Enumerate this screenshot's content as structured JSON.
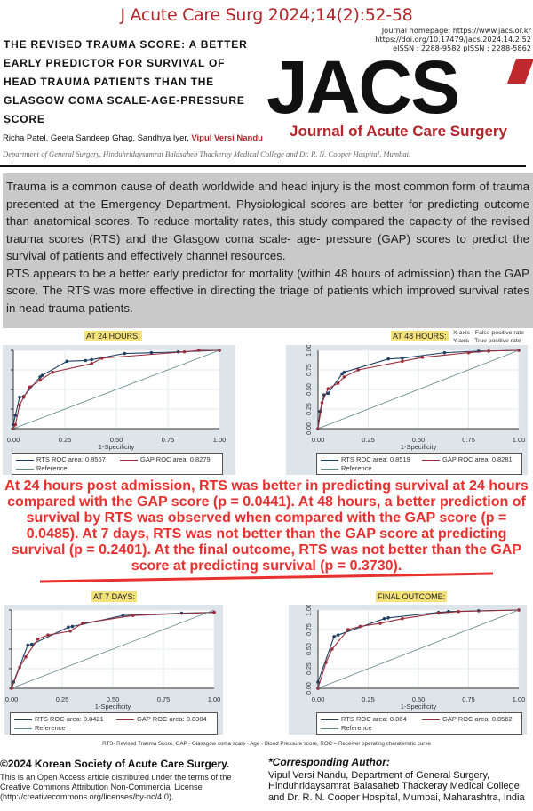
{
  "header": {
    "citation": "J Acute Care Surg 2024;14(2):52-58",
    "meta_lines": [
      "Journal homepage: https://www.jacs.or.kr",
      "https://doi.org/10.17479/jacs.2024.14.2.52",
      "eISSN : 2288-9582 pISSN : 2288-5862"
    ],
    "title": "THE REVISED TRAUMA SCORE: A BETTER EARLY PREDICTOR FOR SURVIVAL OF HEAD TRAUMA PATIENTS THAN THE GLASGOW COMA SCALE-AGE-PRESSURE SCORE",
    "logo": "JACS",
    "journal_name": "Journal of Acute Care Surgery",
    "authors": [
      "Richa Patel",
      "Geeta Sandeep Ghag",
      "Sandhya Iyer",
      "Vipul Versi Nandu"
    ],
    "department": "Department of General Surgery, Hinduhridaysamrat Balasaheb Thackeray Medical College and Dr. R. N. Cooper Hospital, Mumbai.",
    "accent_color": "#b3262b"
  },
  "abstract": {
    "p1": "Trauma is a common cause of death worldwide and head injury is the most common form of trauma presented at the Emergency Department. Physiological scores are better for predicting outcome than anatomical scores. To reduce mortality rates, this study compared the capacity of the revised trauma scores (RTS) and the Glasgow coma scale- age- pressure (GAP) scores to predict the survival of patients and effectively channel resources.",
    "p2": "RTS appears to be a better early predictor for mortality (within 48 hours of admission) than the GAP score. The RTS was more effective in directing the triage of patients which improved survival rates in head trauma patients."
  },
  "axis_note": [
    "X-axis - False positive rate",
    "Y-axis - True positive rate"
  ],
  "stamp_text": "At 24 hours post admission, RTS was better in predicting survival at 24 hours compared with the GAP score (p = 0.0441). At 48 hours, a better prediction of survival by RTS was observed when compared with the GAP score (p = 0.0485). At 7 days, RTS was not better than the GAP score at predicting survival (p = 0.2401). At the final outcome, RTS was not better than the GAP score at predicting survival (p = 0.3730).",
  "chart_data": [
    {
      "type": "line",
      "title": "AT 24 HOURS:",
      "xlabel": "1-Specificity",
      "ylabel": "",
      "xlim": [
        0,
        1
      ],
      "ylim": [
        0,
        1
      ],
      "xticks": [
        "0.00",
        "0.25",
        "0.50",
        "0.75",
        "1.00"
      ],
      "yticks": [],
      "grid": true,
      "legend": "bottom",
      "series": [
        {
          "name": "RTS ROC area: 0.8567",
          "color": "#1f3f63",
          "x": [
            0,
            0,
            0.01,
            0.03,
            0.05,
            0.13,
            0.14,
            0.26,
            0.35,
            0.38,
            0.54,
            0.67,
            0.8,
            1
          ],
          "y": [
            0,
            0.05,
            0.17,
            0.4,
            0.41,
            0.66,
            0.68,
            0.86,
            0.87,
            0.88,
            0.96,
            0.97,
            0.98,
            1
          ]
        },
        {
          "name": "GAP ROC area: 0.8279",
          "color": "#9b2d3a",
          "x": [
            0,
            0.01,
            0.03,
            0.05,
            0.08,
            0.13,
            0.19,
            0.38,
            0.43,
            0.83,
            0.9,
            1
          ],
          "y": [
            0,
            0.05,
            0.3,
            0.4,
            0.53,
            0.62,
            0.72,
            0.83,
            0.9,
            0.98,
            1,
            1
          ]
        },
        {
          "name": "Reference",
          "color": "#5f8a85",
          "x": [
            0,
            1
          ],
          "y": [
            0,
            1
          ]
        }
      ]
    },
    {
      "type": "line",
      "title": "AT 48 HOURS:",
      "xlabel": "1-Specificity",
      "ylabel": "",
      "xlim": [
        0,
        1
      ],
      "ylim": [
        0,
        1
      ],
      "xticks": [
        "0.00",
        "0.25",
        "0.50",
        "0.75",
        "1.00"
      ],
      "yticks": [
        "0.00",
        "0.25",
        "0.50",
        "0.75",
        "1.00"
      ],
      "grid": true,
      "legend": "bottom",
      "series": [
        {
          "name": "RTS ROC area: 0.8519",
          "color": "#1f3f63",
          "x": [
            0,
            0.01,
            0.03,
            0.05,
            0.12,
            0.13,
            0.35,
            0.42,
            0.63,
            0.8,
            1
          ],
          "y": [
            0,
            0.22,
            0.43,
            0.45,
            0.7,
            0.72,
            0.89,
            0.9,
            0.97,
            0.99,
            1
          ]
        },
        {
          "name": "GAP ROC area: 0.8281",
          "color": "#9b2d3a",
          "x": [
            0,
            0.02,
            0.05,
            0.1,
            0.13,
            0.2,
            0.42,
            0.52,
            0.75,
            0.85,
            1
          ],
          "y": [
            0,
            0.33,
            0.51,
            0.58,
            0.66,
            0.75,
            0.86,
            0.91,
            0.97,
            0.99,
            1
          ]
        },
        {
          "name": "Reference",
          "color": "#5f8a85",
          "x": [
            0,
            1
          ],
          "y": [
            0,
            1
          ]
        }
      ]
    },
    {
      "type": "line",
      "title": "AT 7 DAYS:",
      "xlabel": "1-Specificity",
      "ylabel": "",
      "xlim": [
        0,
        1
      ],
      "ylim": [
        0,
        1
      ],
      "xticks": [
        "0.00",
        "0.25",
        "0.50",
        "0.75",
        "1.00"
      ],
      "yticks": [],
      "grid": true,
      "legend": "bottom",
      "series": [
        {
          "name": "RTS ROC area: 0.8421",
          "color": "#1f3f63",
          "x": [
            0,
            0.01,
            0.08,
            0.1,
            0.28,
            0.3,
            0.55,
            0.84,
            1
          ],
          "y": [
            0,
            0.08,
            0.55,
            0.56,
            0.78,
            0.79,
            0.93,
            0.96,
            0.97
          ]
        },
        {
          "name": "GAP ROC area: 0.8304",
          "color": "#9b2d3a",
          "x": [
            0,
            0.04,
            0.07,
            0.13,
            0.18,
            0.29,
            0.35,
            0.6,
            1
          ],
          "y": [
            0,
            0.27,
            0.4,
            0.63,
            0.68,
            0.73,
            0.83,
            0.93,
            0.97
          ]
        },
        {
          "name": "Reference",
          "color": "#5f8a85",
          "x": [
            0,
            1
          ],
          "y": [
            0,
            1
          ]
        }
      ]
    },
    {
      "type": "line",
      "title": "FINAL OUTCOME:",
      "xlabel": "1-Specificity",
      "ylabel": "",
      "xlim": [
        0,
        1
      ],
      "ylim": [
        0,
        1
      ],
      "xticks": [
        "0.00",
        "0.25",
        "0.50",
        "0.75",
        "1.00"
      ],
      "yticks": [
        "0.00",
        "0.25",
        "0.50",
        "0.75",
        "1.00"
      ],
      "grid": true,
      "legend": "bottom",
      "series": [
        {
          "name": "RTS ROC area: 0.864",
          "color": "#1f3f63",
          "x": [
            0,
            0,
            0.08,
            0.1,
            0.33,
            0.35,
            0.6,
            0.65,
            0.8,
            1
          ],
          "y": [
            0,
            0.08,
            0.66,
            0.68,
            0.89,
            0.9,
            0.97,
            0.98,
            0.99,
            1
          ]
        },
        {
          "name": "GAP ROC area: 0.8562",
          "color": "#9b2d3a",
          "x": [
            0,
            0.04,
            0.07,
            0.15,
            0.21,
            0.31,
            0.42,
            0.6,
            0.7,
            1
          ],
          "y": [
            0,
            0.33,
            0.5,
            0.75,
            0.79,
            0.83,
            0.89,
            0.96,
            0.98,
            1
          ]
        },
        {
          "name": "Reference",
          "color": "#5f8a85",
          "x": [
            0,
            1
          ],
          "y": [
            0,
            1
          ]
        }
      ]
    }
  ],
  "caption": "RTS- Revised Trauma Score, GAP - Glassgow coma scale - Age - Blood Pressure score, ROC – Receiver operating charateristic curve",
  "footer": {
    "copyright": "©2024 Korean Society of Acute Care Surgery.",
    "license": "This is an Open Access article distributed under the terms of the Creative Commons Attribution Non-Commercial License (http://creativecommons.org/licenses/by-nc/4.0).",
    "corresponding_heading": "*Corresponding Author:",
    "corresponding_lines": [
      "Vipul Versi Nandu, Department of General Surgery,",
      "Hinduhridaysamrat Balasaheb Thackeray Medical College",
      "and Dr. R. N. Cooper Hospital, Mumbai, Maharashtra, India"
    ]
  }
}
